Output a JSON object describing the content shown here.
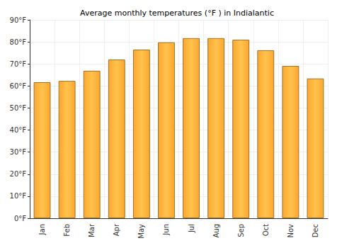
{
  "chart_data": {
    "type": "bar",
    "title": "Average monthly temperatures (°F ) in Indialantic",
    "categories": [
      "Jan",
      "Feb",
      "Mar",
      "Apr",
      "May",
      "Jun",
      "Jul",
      "Aug",
      "Sep",
      "Oct",
      "Nov",
      "Dec"
    ],
    "values": [
      61.7,
      62.3,
      66.9,
      72.0,
      76.5,
      79.8,
      81.7,
      81.7,
      81.0,
      76.2,
      69.1,
      63.4
    ],
    "color": "#fca72f",
    "ylim": [
      0,
      90
    ],
    "yticks": [
      {
        "value": 0,
        "label": "0°F"
      },
      {
        "value": 10,
        "label": "10°F"
      },
      {
        "value": 20,
        "label": "20°F"
      },
      {
        "value": 30,
        "label": "30°F"
      },
      {
        "value": 40,
        "label": "40°F"
      },
      {
        "value": 50,
        "label": "50°F"
      },
      {
        "value": 60,
        "label": "60°F"
      },
      {
        "value": 70,
        "label": "70°F"
      },
      {
        "value": 80,
        "label": "80°F"
      },
      {
        "value": 90,
        "label": "90°F"
      }
    ],
    "grid": true
  }
}
